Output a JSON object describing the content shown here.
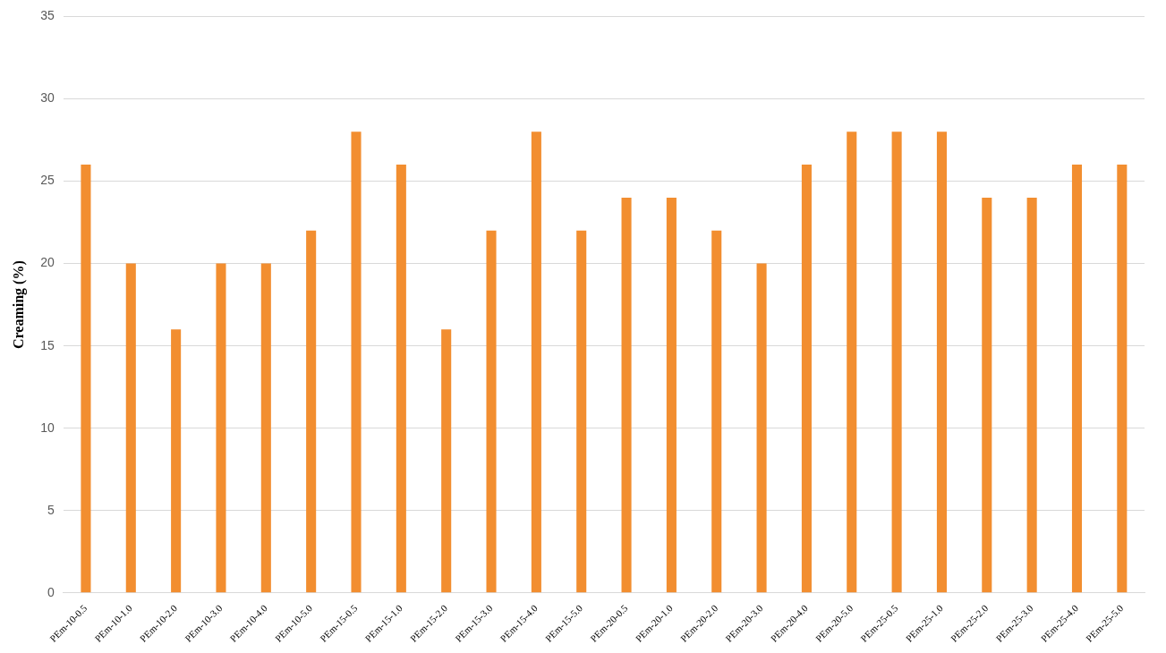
{
  "chart_data": {
    "type": "bar",
    "y_label": "Creaming (%)",
    "categories": [
      "PEm-10-0.5",
      "PEm-10-1.0",
      "PEm-10-2.0",
      "PEm-10-3.0",
      "PEm-10-4.0",
      "PEm-10-5.0",
      "PEm-15-0.5",
      "PEm-15-1.0",
      "PEm-15-2.0",
      "PEm-15-3.0",
      "PEm-15-4.0",
      "PEm-15-5.0",
      "PEm-20-0.5",
      "PEm-20-1.0",
      "PEm-20-2.0",
      "PEm-20-3.0",
      "PEm-20-4.0",
      "PEm-20-5.0",
      "PEm-25-0.5",
      "PEm-25-1.0",
      "PEm-25-2.0",
      "PEm-25-3.0",
      "PEm-25-4.0",
      "PEm-25-5.0"
    ],
    "values": [
      26,
      20,
      16,
      20,
      20,
      22,
      28,
      26,
      16,
      22,
      28,
      22,
      24,
      24,
      22,
      20,
      26,
      28,
      28,
      28,
      24,
      24,
      26,
      26
    ],
    "color": "#f28e30",
    "ylim": [
      0,
      35
    ],
    "yticks": [
      0,
      5,
      10,
      15,
      20,
      25,
      30,
      35
    ],
    "grid": true
  }
}
